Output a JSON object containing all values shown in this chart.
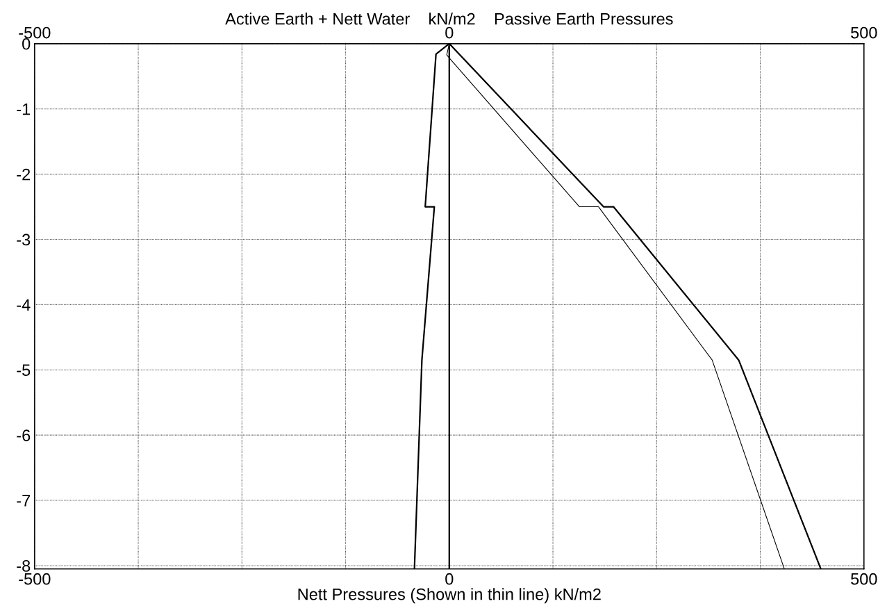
{
  "chart_data": {
    "type": "line",
    "x2label": "Active Earth + Nett Water    kN/m2    Passive Earth Pressures",
    "xlabel": "Nett Pressures (Shown in thin line) kN/m2",
    "series": [
      {
        "color": "#000000",
        "x": [
          0,
          -16,
          -29,
          -18,
          -33,
          -42
        ],
        "values": [
          0,
          -0.16,
          -2.5,
          -2.5,
          -4.85,
          -8.05
        ]
      },
      {
        "color": "#000000",
        "x": [
          0,
          0
        ],
        "values": [
          0,
          -8.05
        ]
      },
      {
        "color": "#000000",
        "x": [
          0,
          186,
          198,
          349,
          448
        ],
        "values": [
          0,
          -2.5,
          -2.5,
          -4.85,
          -8.05
        ]
      },
      {
        "color": "#000000",
        "x": [
          0,
          -3,
          0,
          157,
          180,
          317,
          404
        ],
        "values": [
          0,
          -0.17,
          -0.22,
          -2.5,
          -2.5,
          -4.85,
          -8.05
        ]
      }
    ],
    "xlim": [
      -500,
      500
    ],
    "x2lim": [
      -500,
      500
    ],
    "xticks": [
      -500,
      {
        "value": -375,
        "label": null
      },
      {
        "value": -250,
        "label": null
      },
      {
        "value": -125,
        "label": null
      },
      0,
      {
        "value": 125,
        "label": null
      },
      {
        "value": 250,
        "label": null
      },
      {
        "value": 375,
        "label": null
      },
      500
    ],
    "x2ticks": [
      -500,
      0,
      500
    ],
    "ylim": [
      -8.05,
      0
    ],
    "yticks": [
      0,
      -1,
      -2,
      -3,
      -4,
      -5,
      -6,
      -7,
      -8
    ],
    "grid": true,
    "line_style": "solid",
    "marker": "none"
  }
}
